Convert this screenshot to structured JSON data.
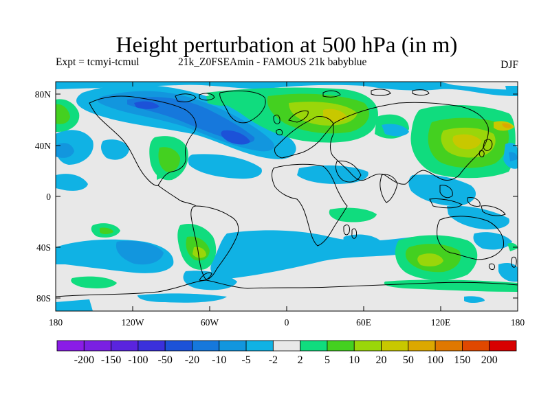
{
  "title": "Height perturbation at 500 hPa (in m)",
  "subtitle_left": "Expt = tcmyi-tcmul",
  "subtitle_mid": "21k_Z0FSEAmin - FAMOUS 21k babyblue",
  "season": "DJF",
  "map": {
    "lat_ticks": [
      "80N",
      "40N",
      "0",
      "40S",
      "80S"
    ],
    "lon_ticks": [
      "180",
      "120W",
      "60W",
      "0",
      "60E",
      "120E",
      "180"
    ]
  },
  "colorbar": {
    "levels": [
      "-200",
      "-150",
      "-100",
      "-50",
      "-20",
      "-10",
      "-5",
      "-2",
      "2",
      "5",
      "10",
      "20",
      "50",
      "100",
      "150",
      "200"
    ],
    "colors": [
      "#8a1ce6",
      "#7a20e2",
      "#5a24de",
      "#3a30dc",
      "#1c52d8",
      "#1678dc",
      "#1296de",
      "#10b2e4",
      "#e8e8e8",
      "#10dc7e",
      "#44d020",
      "#9ad60a",
      "#c8c800",
      "#dca800",
      "#e07800",
      "#e04800",
      "#d80000"
    ]
  }
}
